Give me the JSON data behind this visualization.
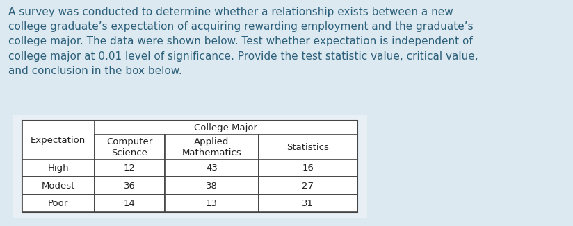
{
  "background_color": "#dce9f0",
  "paragraph_text": "A survey was conducted to determine whether a relationship exists between a new\ncollege graduate’s expectation of acquiring rewarding employment and the graduate’s\ncollege major. The data were shown below. Test whether expectation is independent of\ncollege major at 0.01 level of significance. Provide the test statistic value, critical value,\nand conclusion in the box below.",
  "text_color": "#2c5f7a",
  "text_fontsize": 11.0,
  "table_border_color": "#444444",
  "col_major_header": "College Major",
  "col_headers": [
    "Expectation",
    "Computer\nScience",
    "Applied\nMathematics",
    "Statistics"
  ],
  "rows": [
    [
      "High",
      "12",
      "43",
      "16"
    ],
    [
      "Modest",
      "36",
      "38",
      "27"
    ],
    [
      "Poor",
      "14",
      "13",
      "31"
    ]
  ],
  "table_fontsize": 9.5,
  "table_text_color": "#222222",
  "table_container_color": "#e8f0f5"
}
